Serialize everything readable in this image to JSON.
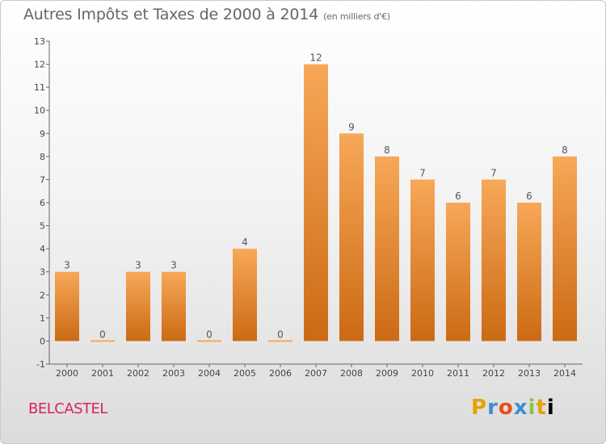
{
  "header": {
    "title": "Autres Impôts et Taxes de 2000 à 2014",
    "unit": "(en milliers d'€)"
  },
  "footer": {
    "commune": "BELCASTEL",
    "brand_letters": [
      "P",
      "r",
      "o",
      "x",
      "i",
      "t",
      "i"
    ]
  },
  "colors": {
    "bar_top": "#f7a858",
    "bar_bottom": "#cc6a14",
    "title": "#666666",
    "commune": "#d6235e"
  },
  "chart_data": {
    "type": "bar",
    "categories": [
      "2000",
      "2001",
      "2002",
      "2003",
      "2004",
      "2005",
      "2006",
      "2007",
      "2008",
      "2009",
      "2010",
      "2011",
      "2012",
      "2013",
      "2014"
    ],
    "values": [
      3,
      0,
      3,
      3,
      0,
      4,
      0,
      12,
      9,
      8,
      7,
      6,
      7,
      6,
      8
    ],
    "ylim": [
      -1,
      13
    ],
    "yticks": [
      -1,
      0,
      1,
      2,
      3,
      4,
      5,
      6,
      7,
      8,
      9,
      10,
      11,
      12,
      13
    ],
    "grid": false,
    "legend": "none"
  }
}
